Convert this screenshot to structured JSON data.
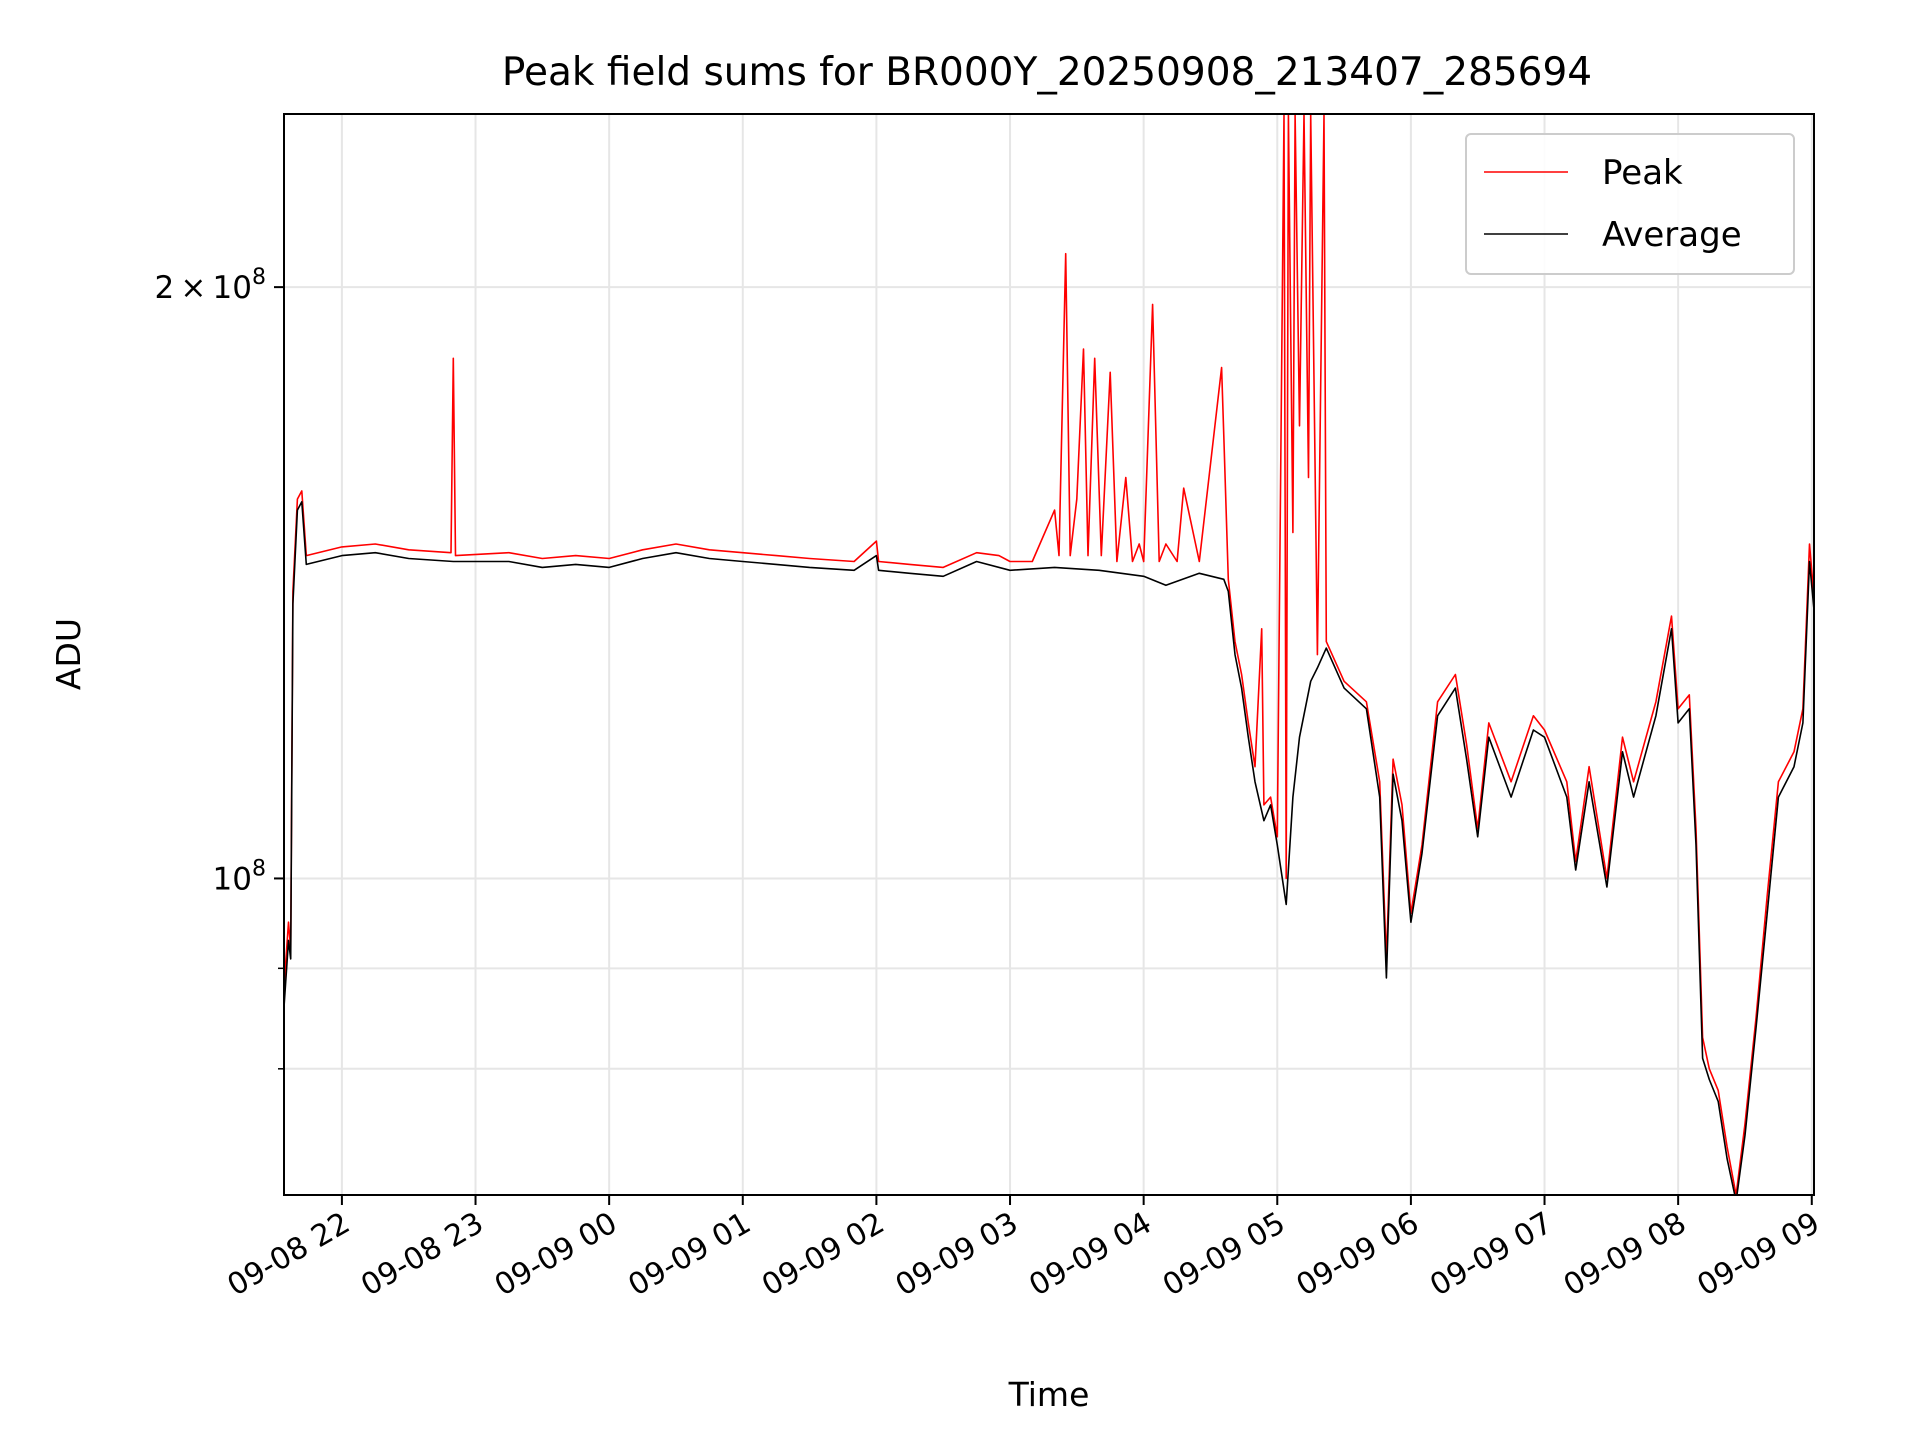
{
  "chart_data": {
    "type": "line",
    "title": "Peak field sums for BR000Y_20250908_213407_285694",
    "xlabel": "Time",
    "ylabel": "ADU",
    "y_scale": "log",
    "grid": true,
    "legend_position": "top-right",
    "x_range": [
      "2025-09-08 21:34",
      "2025-09-09 09:01"
    ],
    "ylim": [
      69000000,
      245000000
    ],
    "x_ticks": [
      "09-08 22",
      "09-08 23",
      "09-09 00",
      "09-09 01",
      "09-09 02",
      "09-09 03",
      "09-09 04",
      "09-09 05",
      "09-09 06",
      "09-09 07",
      "09-09 08",
      "09-09 09"
    ],
    "y_ticks": [
      {
        "value": 100000000,
        "base": "10",
        "exp": "8",
        "mantissa": ""
      },
      {
        "value": 200000000,
        "base": "10",
        "exp": "8",
        "mantissa": "2"
      }
    ],
    "series": [
      {
        "name": "Peak",
        "color": "#ff0000",
        "points": [
          [
            "2025-09-08 21:34",
            88000000
          ],
          [
            "2025-09-08 21:36",
            95000000
          ],
          [
            "2025-09-08 21:37",
            92000000
          ],
          [
            "2025-09-08 21:38",
            140000000
          ],
          [
            "2025-09-08 21:40",
            156000000
          ],
          [
            "2025-09-08 21:42",
            157500000
          ],
          [
            "2025-09-08 21:44",
            146000000
          ],
          [
            "2025-09-08 22:00",
            147500000
          ],
          [
            "2025-09-08 22:15",
            148000000
          ],
          [
            "2025-09-08 22:30",
            147000000
          ],
          [
            "2025-09-08 22:49",
            146500000
          ],
          [
            "2025-09-08 22:50",
            184000000
          ],
          [
            "2025-09-08 22:51",
            146000000
          ],
          [
            "2025-09-08 23:15",
            146500000
          ],
          [
            "2025-09-08 23:30",
            145500000
          ],
          [
            "2025-09-08 23:45",
            146000000
          ],
          [
            "2025-09-09 00:00",
            145500000
          ],
          [
            "2025-09-09 00:15",
            147000000
          ],
          [
            "2025-09-09 00:30",
            148000000
          ],
          [
            "2025-09-09 00:45",
            147000000
          ],
          [
            "2025-09-09 01:00",
            146500000
          ],
          [
            "2025-09-09 01:15",
            146000000
          ],
          [
            "2025-09-09 01:30",
            145500000
          ],
          [
            "2025-09-09 01:50",
            145000000
          ],
          [
            "2025-09-09 02:00",
            148500000
          ],
          [
            "2025-09-09 02:01",
            145000000
          ],
          [
            "2025-09-09 02:15",
            144500000
          ],
          [
            "2025-09-09 02:30",
            144000000
          ],
          [
            "2025-09-09 02:45",
            146500000
          ],
          [
            "2025-09-09 02:55",
            146000000
          ],
          [
            "2025-09-09 03:00",
            145000000
          ],
          [
            "2025-09-09 03:10",
            145000000
          ],
          [
            "2025-09-09 03:20",
            154000000
          ],
          [
            "2025-09-09 03:22",
            146000000
          ],
          [
            "2025-09-09 03:25",
            208000000
          ],
          [
            "2025-09-09 03:27",
            146000000
          ],
          [
            "2025-09-09 03:30",
            156000000
          ],
          [
            "2025-09-09 03:33",
            186000000
          ],
          [
            "2025-09-09 03:35",
            146000000
          ],
          [
            "2025-09-09 03:38",
            184000000
          ],
          [
            "2025-09-09 03:41",
            146000000
          ],
          [
            "2025-09-09 03:45",
            181000000
          ],
          [
            "2025-09-09 03:48",
            145000000
          ],
          [
            "2025-09-09 03:52",
            160000000
          ],
          [
            "2025-09-09 03:55",
            145000000
          ],
          [
            "2025-09-09 03:58",
            148000000
          ],
          [
            "2025-09-09 04:00",
            145000000
          ],
          [
            "2025-09-09 04:04",
            196000000
          ],
          [
            "2025-09-09 04:07",
            145000000
          ],
          [
            "2025-09-09 04:10",
            148000000
          ],
          [
            "2025-09-09 04:15",
            145000000
          ],
          [
            "2025-09-09 04:18",
            158000000
          ],
          [
            "2025-09-09 04:25",
            145000000
          ],
          [
            "2025-09-09 04:35",
            182000000
          ],
          [
            "2025-09-09 04:36",
            168000000
          ],
          [
            "2025-09-09 04:38",
            142000000
          ],
          [
            "2025-09-09 04:41",
            132000000
          ],
          [
            "2025-09-09 04:44",
            127000000
          ],
          [
            "2025-09-09 04:47",
            120000000
          ],
          [
            "2025-09-09 04:50",
            114000000
          ],
          [
            "2025-09-09 04:53",
            134000000
          ],
          [
            "2025-09-09 04:54",
            109000000
          ],
          [
            "2025-09-09 04:57",
            110000000
          ],
          [
            "2025-09-09 05:00",
            105000000
          ],
          [
            "2025-09-09 05:03",
            245000000
          ],
          [
            "2025-09-09 05:04",
            100000000
          ],
          [
            "2025-09-09 05:05",
            245000000
          ],
          [
            "2025-09-09 05:07",
            150000000
          ],
          [
            "2025-09-09 05:08",
            245000000
          ],
          [
            "2025-09-09 05:10",
            170000000
          ],
          [
            "2025-09-09 05:12",
            245000000
          ],
          [
            "2025-09-09 05:14",
            160000000
          ],
          [
            "2025-09-09 05:15",
            245000000
          ],
          [
            "2025-09-09 05:18",
            130000000
          ],
          [
            "2025-09-09 05:21",
            245000000
          ],
          [
            "2025-09-09 05:22",
            132000000
          ],
          [
            "2025-09-09 05:30",
            126000000
          ],
          [
            "2025-09-09 05:40",
            123000000
          ],
          [
            "2025-09-09 05:46",
            112000000
          ],
          [
            "2025-09-09 05:49",
            91000000
          ],
          [
            "2025-09-09 05:52",
            115000000
          ],
          [
            "2025-09-09 05:56",
            109000000
          ],
          [
            "2025-09-09 06:00",
            96000000
          ],
          [
            "2025-09-09 06:05",
            104000000
          ],
          [
            "2025-09-09 06:12",
            123000000
          ],
          [
            "2025-09-09 06:20",
            127000000
          ],
          [
            "2025-09-09 06:25",
            117000000
          ],
          [
            "2025-09-09 06:30",
            106000000
          ],
          [
            "2025-09-09 06:35",
            120000000
          ],
          [
            "2025-09-09 06:45",
            112000000
          ],
          [
            "2025-09-09 06:55",
            121000000
          ],
          [
            "2025-09-09 07:00",
            119000000
          ],
          [
            "2025-09-09 07:10",
            112000000
          ],
          [
            "2025-09-09 07:14",
            102000000
          ],
          [
            "2025-09-09 07:20",
            114000000
          ],
          [
            "2025-09-09 07:28",
            100000000
          ],
          [
            "2025-09-09 07:35",
            118000000
          ],
          [
            "2025-09-09 07:40",
            112000000
          ],
          [
            "2025-09-09 07:50",
            123000000
          ],
          [
            "2025-09-09 07:57",
            136000000
          ],
          [
            "2025-09-09 08:00",
            122000000
          ],
          [
            "2025-09-09 08:05",
            124000000
          ],
          [
            "2025-09-09 08:08",
            106000000
          ],
          [
            "2025-09-09 08:11",
            83000000
          ],
          [
            "2025-09-09 08:14",
            80000000
          ],
          [
            "2025-09-09 08:18",
            78000000
          ],
          [
            "2025-09-09 08:22",
            73000000
          ],
          [
            "2025-09-09 08:26",
            69000000
          ],
          [
            "2025-09-09 08:30",
            75000000
          ],
          [
            "2025-09-09 08:35",
            85000000
          ],
          [
            "2025-09-09 08:40",
            98000000
          ],
          [
            "2025-09-09 08:45",
            112000000
          ],
          [
            "2025-09-09 08:52",
            116000000
          ],
          [
            "2025-09-09 08:56",
            122000000
          ],
          [
            "2025-09-09 08:59",
            148000000
          ],
          [
            "2025-09-09 09:01",
            139000000
          ]
        ]
      },
      {
        "name": "Average",
        "color": "#000000",
        "points": [
          [
            "2025-09-08 21:34",
            86000000
          ],
          [
            "2025-09-08 21:36",
            93000000
          ],
          [
            "2025-09-08 21:37",
            91000000
          ],
          [
            "2025-09-08 21:38",
            138000000
          ],
          [
            "2025-09-08 21:40",
            154000000
          ],
          [
            "2025-09-08 21:42",
            155500000
          ],
          [
            "2025-09-08 21:44",
            144500000
          ],
          [
            "2025-09-08 22:00",
            146000000
          ],
          [
            "2025-09-08 22:15",
            146500000
          ],
          [
            "2025-09-08 22:30",
            145500000
          ],
          [
            "2025-09-08 22:50",
            145000000
          ],
          [
            "2025-09-08 23:15",
            145000000
          ],
          [
            "2025-09-08 23:30",
            144000000
          ],
          [
            "2025-09-08 23:45",
            144500000
          ],
          [
            "2025-09-09 00:00",
            144000000
          ],
          [
            "2025-09-09 00:15",
            145500000
          ],
          [
            "2025-09-09 00:30",
            146500000
          ],
          [
            "2025-09-09 00:45",
            145500000
          ],
          [
            "2025-09-09 01:00",
            145000000
          ],
          [
            "2025-09-09 01:15",
            144500000
          ],
          [
            "2025-09-09 01:30",
            144000000
          ],
          [
            "2025-09-09 01:50",
            143500000
          ],
          [
            "2025-09-09 02:00",
            146000000
          ],
          [
            "2025-09-09 02:01",
            143500000
          ],
          [
            "2025-09-09 02:15",
            143000000
          ],
          [
            "2025-09-09 02:30",
            142500000
          ],
          [
            "2025-09-09 02:45",
            145000000
          ],
          [
            "2025-09-09 03:00",
            143500000
          ],
          [
            "2025-09-09 03:20",
            144000000
          ],
          [
            "2025-09-09 03:40",
            143500000
          ],
          [
            "2025-09-09 04:00",
            142500000
          ],
          [
            "2025-09-09 04:10",
            141000000
          ],
          [
            "2025-09-09 04:25",
            143000000
          ],
          [
            "2025-09-09 04:36",
            142000000
          ],
          [
            "2025-09-09 04:38",
            140000000
          ],
          [
            "2025-09-09 04:41",
            130000000
          ],
          [
            "2025-09-09 04:44",
            125000000
          ],
          [
            "2025-09-09 04:47",
            118000000
          ],
          [
            "2025-09-09 04:50",
            112000000
          ],
          [
            "2025-09-09 04:54",
            107000000
          ],
          [
            "2025-09-09 04:57",
            109000000
          ],
          [
            "2025-09-09 05:00",
            104000000
          ],
          [
            "2025-09-09 05:04",
            97000000
          ],
          [
            "2025-09-09 05:07",
            110000000
          ],
          [
            "2025-09-09 05:10",
            118000000
          ],
          [
            "2025-09-09 05:15",
            126000000
          ],
          [
            "2025-09-09 05:18",
            128000000
          ],
          [
            "2025-09-09 05:22",
            131000000
          ],
          [
            "2025-09-09 05:30",
            125000000
          ],
          [
            "2025-09-09 05:40",
            122000000
          ],
          [
            "2025-09-09 05:46",
            110000000
          ],
          [
            "2025-09-09 05:49",
            89000000
          ],
          [
            "2025-09-09 05:52",
            113000000
          ],
          [
            "2025-09-09 05:56",
            107000000
          ],
          [
            "2025-09-09 06:00",
            95000000
          ],
          [
            "2025-09-09 06:05",
            103000000
          ],
          [
            "2025-09-09 06:12",
            121000000
          ],
          [
            "2025-09-09 06:20",
            125000000
          ],
          [
            "2025-09-09 06:25",
            115000000
          ],
          [
            "2025-09-09 06:30",
            105000000
          ],
          [
            "2025-09-09 06:35",
            118000000
          ],
          [
            "2025-09-09 06:45",
            110000000
          ],
          [
            "2025-09-09 06:55",
            119000000
          ],
          [
            "2025-09-09 07:00",
            118000000
          ],
          [
            "2025-09-09 07:10",
            110000000
          ],
          [
            "2025-09-09 07:14",
            101000000
          ],
          [
            "2025-09-09 07:20",
            112000000
          ],
          [
            "2025-09-09 07:28",
            99000000
          ],
          [
            "2025-09-09 07:35",
            116000000
          ],
          [
            "2025-09-09 07:40",
            110000000
          ],
          [
            "2025-09-09 07:50",
            121000000
          ],
          [
            "2025-09-09 07:57",
            134000000
          ],
          [
            "2025-09-09 08:00",
            120000000
          ],
          [
            "2025-09-09 08:05",
            122000000
          ],
          [
            "2025-09-09 08:08",
            104000000
          ],
          [
            "2025-09-09 08:11",
            81000000
          ],
          [
            "2025-09-09 08:14",
            79000000
          ],
          [
            "2025-09-09 08:18",
            77000000
          ],
          [
            "2025-09-09 08:22",
            72000000
          ],
          [
            "2025-09-09 08:26",
            68500000
          ],
          [
            "2025-09-09 08:30",
            74000000
          ],
          [
            "2025-09-09 08:35",
            84000000
          ],
          [
            "2025-09-09 08:40",
            96000000
          ],
          [
            "2025-09-09 08:45",
            110000000
          ],
          [
            "2025-09-09 08:52",
            114000000
          ],
          [
            "2025-09-09 08:56",
            120000000
          ],
          [
            "2025-09-09 08:59",
            145000000
          ],
          [
            "2025-09-09 09:01",
            137000000
          ]
        ]
      }
    ]
  }
}
